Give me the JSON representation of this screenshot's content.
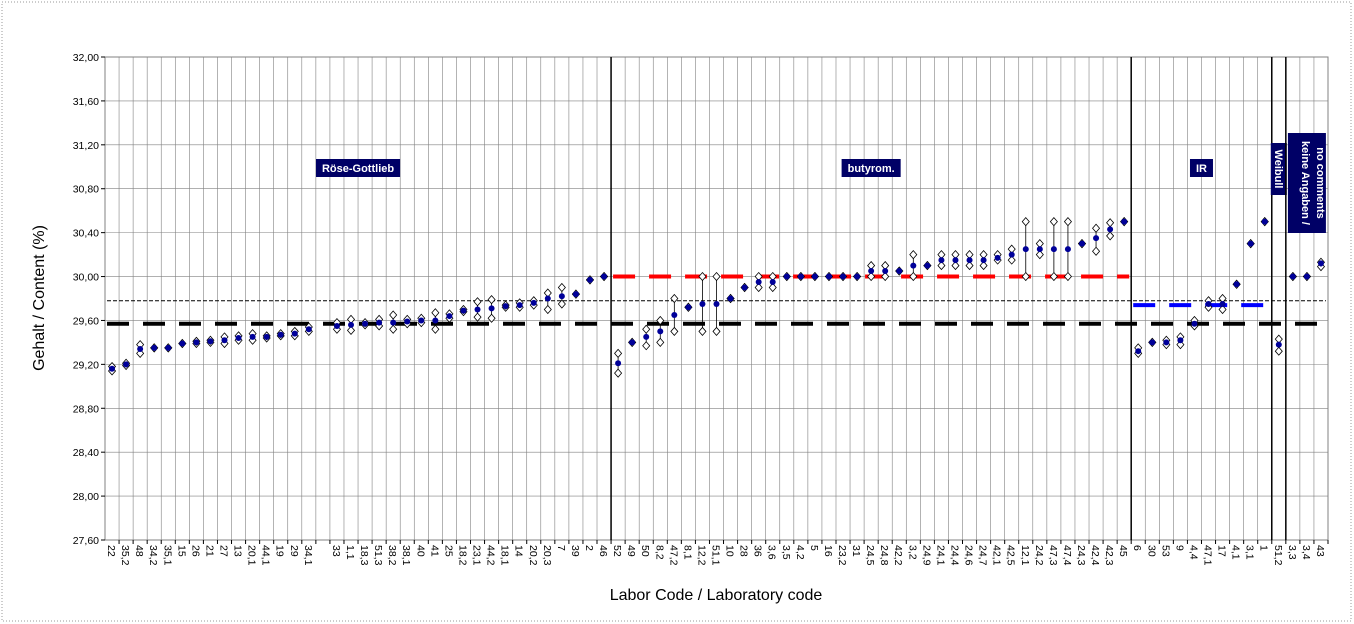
{
  "chart_data": {
    "type": "scatter",
    "y_label": "Gehalt / Content (%)",
    "x_label": "Labor Code / Laboratory code",
    "ylim": [
      27.6,
      32.0
    ],
    "yticks": [
      {
        "value": 27.6,
        "label": "27,60"
      },
      {
        "value": 28.0,
        "label": "28,00"
      },
      {
        "value": 28.4,
        "label": "28,40"
      },
      {
        "value": 28.8,
        "label": "28,80"
      },
      {
        "value": 29.2,
        "label": "29,20"
      },
      {
        "value": 29.6,
        "label": "29,60"
      },
      {
        "value": 30.0,
        "label": "30,00"
      },
      {
        "value": 30.4,
        "label": "30,40"
      },
      {
        "value": 30.8,
        "label": "30,80"
      },
      {
        "value": 31.2,
        "label": "31,20"
      },
      {
        "value": 31.6,
        "label": "31,60"
      },
      {
        "value": 32.0,
        "label": "32,00"
      }
    ],
    "grid": true,
    "categories": [
      "22",
      "35,2",
      "48",
      "34,2",
      "35,1",
      "15",
      "26",
      "21",
      "27",
      "13",
      "20,1",
      "44,1",
      "19",
      "29",
      "34,1",
      null,
      "33",
      "1,1",
      "18,3",
      "51,3",
      "38,2",
      "38,1",
      "40",
      "41",
      "25",
      "18,2",
      "23,1",
      "44,2",
      "18,1",
      "14",
      "20,2",
      "20,3",
      "7",
      "39",
      "2",
      "46",
      "52",
      "49",
      "50",
      "8,2",
      "47,2",
      "8,1",
      "12,2",
      "51,1",
      "10",
      "28",
      "36",
      "3,6",
      "3,5",
      "4,2",
      "5",
      "16",
      "23,2",
      "31",
      "24,5",
      "24,8",
      "42,2",
      "3,2",
      "24,9",
      "24,1",
      "24,4",
      "24,6",
      "24,7",
      "42,1",
      "42,5",
      "12,1",
      "24,2",
      "47,3",
      "47,4",
      "24,3",
      "42,4",
      "42,3",
      "45",
      "6",
      "30",
      "53",
      "9",
      "4,4",
      "47,1",
      "17",
      "4,1",
      "3,1",
      "1",
      "51,2",
      "3,3",
      "3,4",
      "43"
    ],
    "series": [
      {
        "color": "#000099",
        "values": [
          29.16,
          29.2,
          29.34,
          29.35,
          29.35,
          29.39,
          29.4,
          29.41,
          29.42,
          29.44,
          29.45,
          29.45,
          29.47,
          29.48,
          29.52,
          null,
          29.55,
          29.56,
          29.57,
          29.58,
          29.58,
          29.59,
          29.6,
          29.6,
          29.64,
          29.69,
          29.7,
          29.71,
          29.73,
          29.74,
          29.76,
          29.8,
          29.82,
          29.84,
          29.97,
          30.0,
          29.21,
          29.4,
          29.45,
          29.5,
          29.65,
          29.72,
          29.75,
          29.75,
          29.8,
          29.9,
          29.95,
          29.95,
          30.0,
          30.0,
          30.0,
          30.0,
          30.0,
          30.0,
          30.05,
          30.05,
          30.05,
          30.1,
          30.1,
          30.15,
          30.15,
          30.15,
          30.15,
          30.17,
          30.2,
          30.25,
          30.25,
          30.25,
          30.25,
          30.3,
          30.35,
          30.43,
          30.5,
          29.32,
          29.4,
          29.4,
          29.42,
          29.57,
          29.75,
          29.75,
          29.93,
          30.3,
          30.5,
          29.38,
          30.0,
          30.0,
          30.12
        ]
      },
      {
        "color": "#ffffff",
        "values": [
          29.14,
          29.19,
          29.3,
          29.35,
          29.35,
          29.39,
          29.39,
          29.4,
          29.39,
          29.42,
          29.42,
          29.44,
          29.46,
          29.46,
          29.5,
          null,
          29.52,
          29.51,
          29.56,
          29.55,
          29.52,
          29.57,
          29.58,
          29.52,
          29.62,
          29.68,
          29.63,
          29.62,
          29.72,
          29.72,
          29.74,
          29.7,
          29.75,
          29.84,
          29.97,
          30.0,
          29.12,
          29.4,
          29.37,
          29.4,
          29.5,
          29.72,
          29.5,
          29.5,
          29.8,
          29.9,
          29.9,
          29.9,
          30.0,
          30.0,
          30.0,
          30.0,
          30.0,
          30.0,
          30.0,
          30.0,
          30.05,
          30.0,
          30.1,
          30.1,
          30.1,
          30.1,
          30.1,
          30.15,
          30.15,
          30.0,
          30.2,
          30.0,
          30.0,
          30.3,
          30.23,
          30.37,
          30.5,
          29.3,
          29.4,
          29.38,
          29.38,
          29.55,
          29.72,
          29.7,
          29.93,
          30.3,
          30.5,
          29.32,
          30.0,
          30.0,
          30.09
        ]
      },
      {
        "color": "#ffffff",
        "values": [
          29.18,
          29.21,
          29.38,
          29.35,
          29.35,
          29.39,
          29.41,
          29.42,
          29.45,
          29.46,
          29.48,
          29.46,
          29.48,
          29.5,
          29.54,
          null,
          29.58,
          29.61,
          29.58,
          29.61,
          29.65,
          29.61,
          29.62,
          29.67,
          29.66,
          29.7,
          29.77,
          29.79,
          29.74,
          29.76,
          29.78,
          29.85,
          29.9,
          29.84,
          29.97,
          30.0,
          29.3,
          29.4,
          29.52,
          29.6,
          29.8,
          29.72,
          30.0,
          30.0,
          29.8,
          29.9,
          30.0,
          30.0,
          30.0,
          30.0,
          30.0,
          30.0,
          30.0,
          30.0,
          30.1,
          30.1,
          30.05,
          30.2,
          30.1,
          30.2,
          30.2,
          30.2,
          30.2,
          30.2,
          30.25,
          30.5,
          30.3,
          30.5,
          30.5,
          30.3,
          30.44,
          30.49,
          30.5,
          29.35,
          29.4,
          29.42,
          29.45,
          29.6,
          29.78,
          29.8,
          29.93,
          30.3,
          30.5,
          29.43,
          30.0,
          30.0,
          30.13
        ]
      }
    ],
    "groups": [
      {
        "label": "Röse-Gottlieb",
        "from": "22",
        "to": "46"
      },
      {
        "label": "butyrom.",
        "from": "52",
        "to": "45"
      },
      {
        "label": "IR",
        "from": "6",
        "to": "1"
      },
      {
        "label": "Weibull",
        "from": "51,2",
        "to": "51,2"
      },
      {
        "label": [
          "keine Angaben /",
          "no comments"
        ],
        "from": "3,3",
        "to": "43"
      }
    ],
    "reference_lines": [
      {
        "value": 29.57,
        "color": "#000000",
        "style": "thick"
      },
      {
        "value": 29.78,
        "color": "#000000",
        "style": "thin"
      },
      {
        "value": 30.0,
        "color": "#ff0000",
        "style": "thick",
        "group": "butyrom."
      },
      {
        "value": 29.74,
        "color": "#0000ff",
        "style": "thick",
        "group": "IR"
      }
    ]
  }
}
